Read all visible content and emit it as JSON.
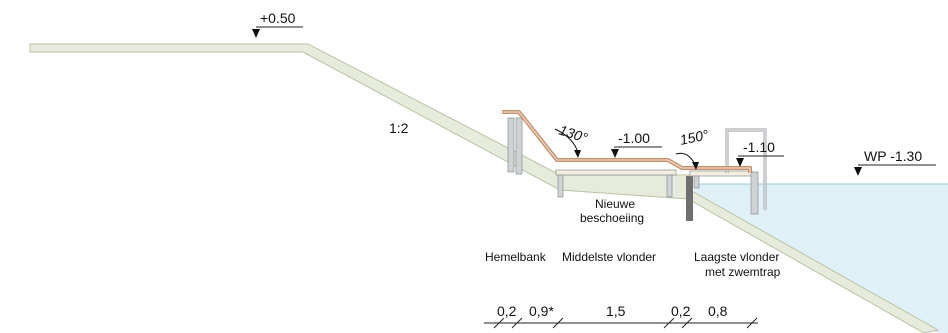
{
  "colors": {
    "bank": "#e6ebdc",
    "bank_edge": "#b9c2a6",
    "water": "#dff0f6",
    "deck": "#f3eee2",
    "post": "#cfd3d6",
    "steel": "#c58f6b",
    "line": "#222222",
    "sheet_pile": "#6f6f6f"
  },
  "levels": {
    "top": "+0.50",
    "mid_deck": "-1.00",
    "low_deck": "-1.10",
    "water": "WP -1.30"
  },
  "slope": "1:2",
  "angles": {
    "upper": "130°",
    "lower": "150°"
  },
  "labels": {
    "new_revetment": [
      "Nieuwe",
      "beschoeiing"
    ],
    "hemelbank": "Hemelbank",
    "middle_deck": "Middelste vlonder",
    "lowest_deck": [
      "Laagste vlonder",
      "met zwemtrap"
    ]
  },
  "dimensions": [
    "0,2",
    "0,9*",
    "1,5",
    "0,2",
    "0,8"
  ]
}
